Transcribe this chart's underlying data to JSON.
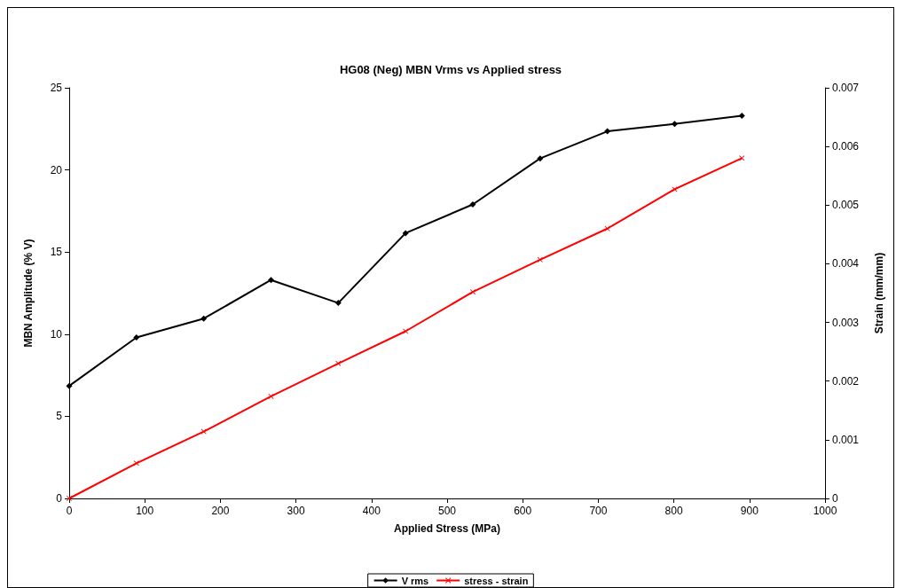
{
  "chart_data": {
    "type": "line",
    "title": "HG08 (Neg) MBN Vrms vs Applied stress",
    "xlabel": "Applied Stress (MPa)",
    "ylabel": "MBN Amplitude (% V)",
    "y2label": "Strain (mm/mm)",
    "x": [
      0,
      89,
      178,
      267,
      356,
      445,
      534,
      623,
      712,
      801,
      890
    ],
    "series": [
      {
        "name": "V rms",
        "color": "#000000",
        "marker": "diamond",
        "values": [
          6.85,
          9.8,
          10.95,
          13.3,
          11.9,
          16.15,
          17.9,
          20.7,
          22.35,
          22.8,
          23.3
        ]
      },
      {
        "name": "stress - strain",
        "color": "#ff0000",
        "marker": "cross",
        "axis": "y2",
        "values": [
          0,
          0.0006,
          0.00114,
          0.00174,
          0.0023,
          0.00285,
          0.00352,
          0.00407,
          0.0046,
          0.00527,
          0.0058
        ]
      }
    ],
    "xlim": [
      0,
      1000
    ],
    "xticks": [
      0,
      100,
      200,
      300,
      400,
      500,
      600,
      700,
      800,
      900,
      1000
    ],
    "ylim": [
      0,
      25
    ],
    "yticks": [
      0,
      5,
      10,
      15,
      20,
      25
    ],
    "y2lim": [
      0,
      0.007
    ],
    "y2ticks": [
      0,
      0.001,
      0.002,
      0.003,
      0.004,
      0.005,
      0.006,
      0.007
    ],
    "grid": false,
    "legend": "bottom",
    "line_style": "solid"
  }
}
